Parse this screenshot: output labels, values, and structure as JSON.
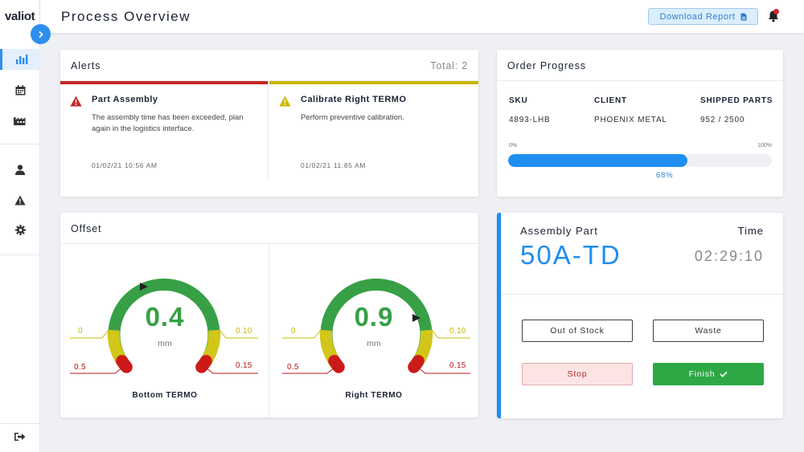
{
  "app": {
    "logo": "valiot"
  },
  "header": {
    "title": "Process Overview",
    "download_label": "Download Report"
  },
  "sidebar": {
    "items": [
      {
        "name": "dashboard",
        "icon": "bar-chart-icon",
        "active": true
      },
      {
        "name": "calendar",
        "icon": "calendar-icon"
      },
      {
        "name": "factory",
        "icon": "factory-icon"
      },
      {
        "name": "user",
        "icon": "user-icon"
      },
      {
        "name": "alerts",
        "icon": "warning-icon"
      },
      {
        "name": "settings",
        "icon": "gear-icon"
      },
      {
        "name": "logout",
        "icon": "logout-icon"
      }
    ]
  },
  "alerts": {
    "title": "Alerts",
    "total": "Total: 2",
    "items": [
      {
        "title": "Part Assembly",
        "description": "The assembly time has been exceeded, plan again in the logistics interface.",
        "date": "01/02/21 10:56 AM",
        "severity": "error",
        "color": "#c62828"
      },
      {
        "title": "Calibrate Right TERMO",
        "description": "Perform preventive calibration.",
        "date": "01/02/21 11:85 AM",
        "severity": "warning",
        "color": "#c9b800"
      }
    ]
  },
  "order": {
    "title": "Order Progress",
    "columns": [
      {
        "label": "SKU",
        "value": "4893-LHB"
      },
      {
        "label": "CLIENT",
        "value": "PHOENIX METAL"
      },
      {
        "label": "SHIPPED PARTS",
        "value": "952 / 2500"
      }
    ],
    "progress_min": "0%",
    "progress_max": "100%",
    "progress_fraction": 0.68,
    "progress_label": "68%"
  },
  "offset": {
    "title": "Offset",
    "gauges": [
      {
        "name": "Bottom TERMO",
        "value": "0.4",
        "unit": "mm",
        "left_yellow": "0",
        "left_red": "0.5",
        "right_yellow": "0.10",
        "right_red": "0.15"
      },
      {
        "name": "Right TERMO",
        "value": "0.9",
        "unit": "mm",
        "left_yellow": "0",
        "left_red": "0.5",
        "right_yellow": "0.10",
        "right_red": "0.15"
      }
    ]
  },
  "assembly": {
    "part_label": "Assembly Part",
    "part_value": "50A-TD",
    "time_label": "Time",
    "time_value": "02:29:10",
    "buttons": {
      "out_of_stock": "Out of Stock",
      "waste": "Waste",
      "stop": "Stop",
      "finish": "Finish"
    }
  },
  "colors": {
    "accent": "#1f8ef1",
    "green": "#37a046",
    "yellow": "#c9b800",
    "red": "#c62828"
  }
}
